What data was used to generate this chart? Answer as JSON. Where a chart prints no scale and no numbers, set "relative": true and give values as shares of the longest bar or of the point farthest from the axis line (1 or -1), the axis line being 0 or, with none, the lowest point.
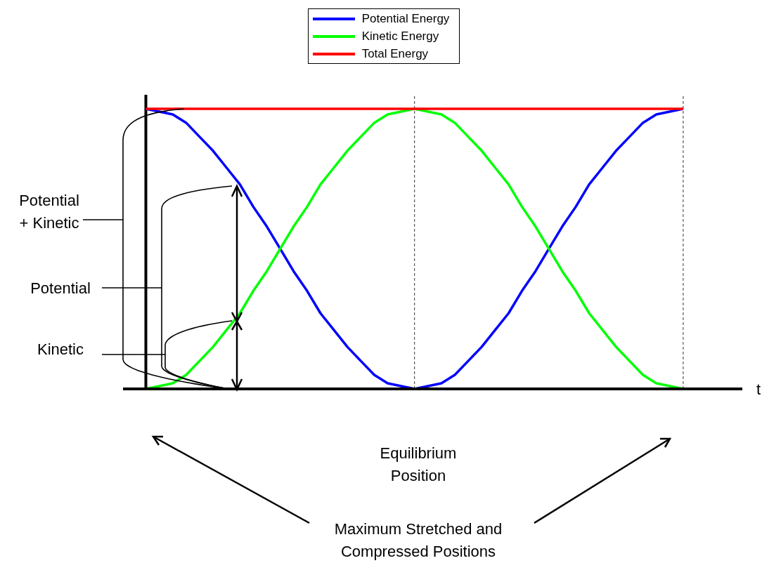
{
  "chart_data": {
    "type": "line",
    "relative": true,
    "xlabel": "t",
    "categories": [
      null,
      null,
      null,
      null,
      null,
      null,
      null,
      null,
      null,
      null,
      null,
      null,
      null,
      null,
      null,
      null,
      null,
      null,
      null,
      null,
      null,
      null,
      null,
      null,
      null,
      null,
      null,
      null,
      null,
      null,
      null,
      null,
      null,
      null,
      null,
      null,
      null,
      null,
      null,
      null,
      null
    ],
    "legend": "top",
    "series": [
      {
        "name": "Potential Energy",
        "color": "#0000ff",
        "values": [
          1,
          0.99,
          0.98,
          0.95,
          0.9,
          0.85,
          0.79,
          0.73,
          0.65,
          0.58,
          0.5,
          0.42,
          0.35,
          0.27,
          0.21,
          0.15,
          0.1,
          0.05,
          0.02,
          0.01,
          0,
          0.01,
          0.02,
          0.05,
          0.1,
          0.15,
          0.21,
          0.27,
          0.35,
          0.42,
          0.5,
          0.58,
          0.65,
          0.73,
          0.79,
          0.85,
          0.9,
          0.95,
          0.98,
          0.99,
          1
        ]
      },
      {
        "name": "Kinetic Energy",
        "color": "#00ff00",
        "values": [
          0,
          0.01,
          0.02,
          0.05,
          0.1,
          0.15,
          0.21,
          0.27,
          0.35,
          0.42,
          0.5,
          0.58,
          0.65,
          0.73,
          0.79,
          0.85,
          0.9,
          0.95,
          0.98,
          0.99,
          1,
          0.99,
          0.98,
          0.95,
          0.9,
          0.85,
          0.79,
          0.73,
          0.65,
          0.58,
          0.5,
          0.42,
          0.35,
          0.27,
          0.21,
          0.15,
          0.1,
          0.05,
          0.02,
          0.01,
          0
        ]
      },
      {
        "name": "Total Energy",
        "color": "#ff0000",
        "values": [
          1,
          1,
          1,
          1,
          1,
          1,
          1,
          1,
          1,
          1,
          1,
          1,
          1,
          1,
          1,
          1,
          1,
          1,
          1,
          1,
          1,
          1,
          1,
          1,
          1,
          1,
          1,
          1,
          1,
          1,
          1,
          1,
          1,
          1,
          1,
          1,
          1,
          1,
          1,
          1,
          1
        ]
      }
    ],
    "annotations": [
      "Potential + Kinetic",
      "Potential",
      "Kinetic",
      "Equilibrium Position",
      "Maximum Stretched and Compressed Positions"
    ]
  }
}
